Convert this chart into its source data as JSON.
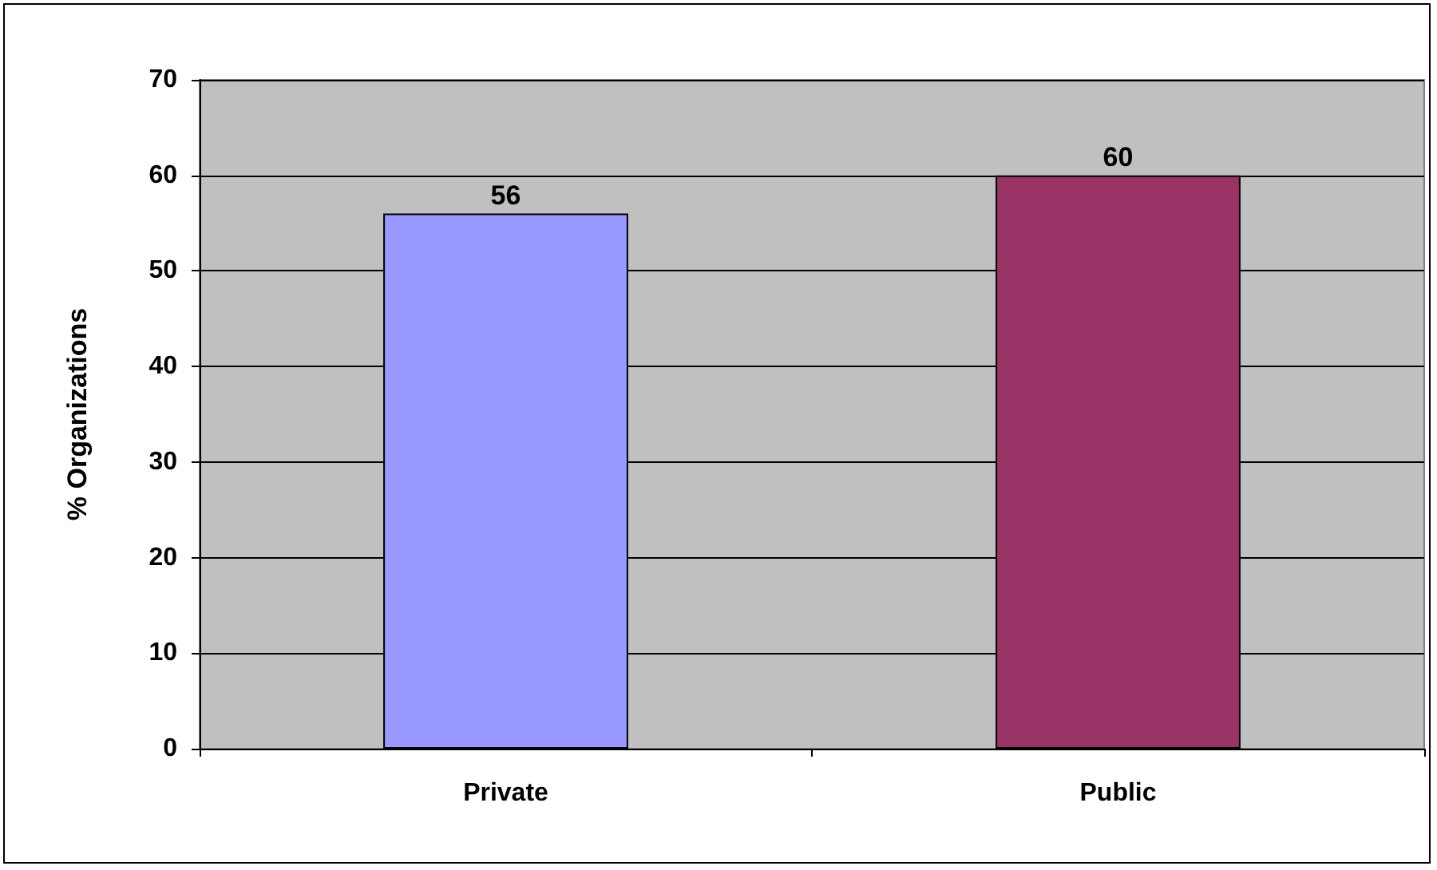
{
  "chart_data": {
    "type": "bar",
    "ylabel": "% Organizations",
    "categories": [
      "Private",
      "Public"
    ],
    "values": [
      56,
      60
    ],
    "colors": [
      "#9999ff",
      "#993366"
    ],
    "ylim": [
      0,
      70
    ],
    "yticks": [
      0,
      10,
      20,
      30,
      40,
      50,
      60,
      70
    ],
    "grid": "y",
    "data_labels": true
  }
}
